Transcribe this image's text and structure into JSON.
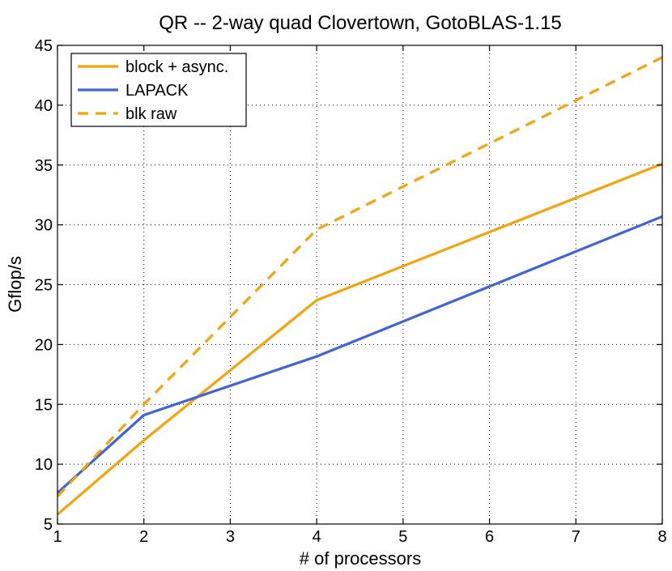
{
  "chart_data": {
    "type": "line",
    "title": "QR -- 2-way quad Clovertown, GotoBLAS-1.15",
    "xlabel": "# of processors",
    "ylabel": "Gflop/s",
    "xlim": [
      1,
      8
    ],
    "ylim": [
      5,
      45
    ],
    "xticks": [
      "1",
      "2",
      "3",
      "4",
      "5",
      "6",
      "7",
      "8"
    ],
    "yticks": [
      "5",
      "10",
      "15",
      "20",
      "25",
      "30",
      "35",
      "40",
      "45"
    ],
    "grid": true,
    "legend_position": "top-left",
    "series": [
      {
        "name": "block + async.",
        "color": "#f5a30a",
        "dash": "solid",
        "x": [
          1,
          2,
          4,
          8
        ],
        "y": [
          5.8,
          12.0,
          23.7,
          35.1
        ]
      },
      {
        "name": "LAPACK",
        "color": "#3f64d6",
        "dash": "solid",
        "x": [
          1,
          2,
          4,
          8
        ],
        "y": [
          7.6,
          14.1,
          19.0,
          30.7
        ]
      },
      {
        "name": "blk raw",
        "color": "#f5a30a",
        "dash": "dashed",
        "x": [
          1,
          2,
          4,
          8
        ],
        "y": [
          7.3,
          15.0,
          29.6,
          44.0
        ]
      }
    ]
  }
}
